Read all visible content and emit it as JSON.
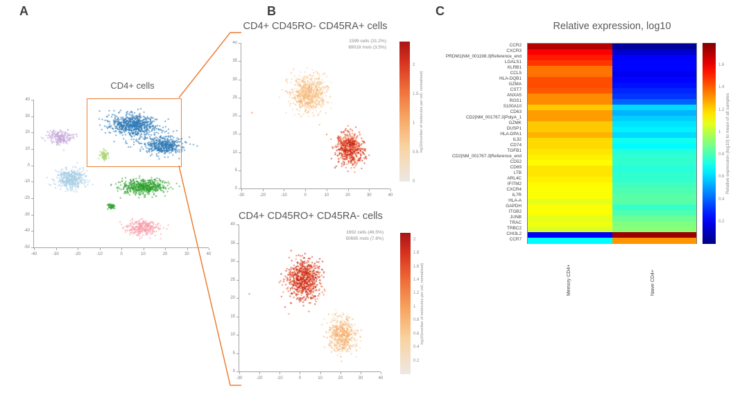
{
  "figure": {
    "panel_labels": {
      "a": "A",
      "b": "B",
      "c": "C"
    },
    "accent_color": "#ED7D31",
    "axis_color": "#a3a3a3"
  },
  "chart_data": [
    {
      "id": "tsne_overview",
      "panel": "A",
      "type": "scatter",
      "title": "",
      "xlim": [
        -40,
        40
      ],
      "ylim": [
        -50,
        40
      ],
      "x_ticks": [
        -40,
        -30,
        -20,
        -10,
        0,
        10,
        20,
        30,
        40
      ],
      "y_ticks": [
        -50,
        -40,
        -30,
        -20,
        -10,
        0,
        10,
        20,
        30,
        40
      ],
      "highlight_box": {
        "label": "CD4+ cells",
        "x_range": [
          -16,
          27
        ],
        "y_range": [
          0,
          41
        ],
        "color": "#ED7D31"
      },
      "clusters": [
        {
          "name": "CD4+ cells (selected)",
          "color": "#2E79B5",
          "blobs": [
            [
              5,
              25,
              10.5,
              6,
              620
            ],
            [
              20,
              12,
              8.5,
              5,
              420
            ],
            [
              11,
              19,
              12,
              8,
              120
            ]
          ]
        },
        {
          "name": "cluster-lavender",
          "color": "#C5A5D8",
          "blobs": [
            [
              -28,
              17,
              5.5,
              4.5,
              200
            ]
          ]
        },
        {
          "name": "cluster-light-blue",
          "color": "#A9CEE5",
          "blobs": [
            [
              -23,
              -8,
              6.5,
              6,
              430
            ]
          ]
        },
        {
          "name": "cluster-light-green",
          "color": "#A7D46B",
          "blobs": [
            [
              -8,
              6,
              2,
              3,
              70
            ]
          ]
        },
        {
          "name": "cluster-green",
          "color": "#2DA02D",
          "blobs": [
            [
              10,
              -13,
              10.5,
              4.5,
              520
            ],
            [
              -5,
              -25,
              2,
              2,
              45
            ]
          ]
        },
        {
          "name": "cluster-pink",
          "color": "#F79DA9",
          "blobs": [
            [
              10,
              -38,
              7.5,
              4.5,
              300
            ]
          ]
        }
      ]
    },
    {
      "id": "tsne_cd45ra",
      "panel": "B",
      "type": "scatter",
      "title": "CD4+ CD45RO- CD45RA+ cells",
      "annotation": [
        "1599 cells (31.2%)",
        "69018 mols (3.5%)"
      ],
      "xlim": [
        -30,
        40
      ],
      "ylim": [
        0,
        40
      ],
      "x_ticks": [
        -30,
        -20,
        -10,
        0,
        10,
        20,
        30,
        40
      ],
      "y_ticks": [
        0,
        5,
        10,
        15,
        20,
        25,
        30,
        35,
        40
      ],
      "colorbar": {
        "label": "log10(number of molecules per cell, normalized)",
        "ticks": [
          0,
          0.5,
          1,
          1.5,
          2
        ],
        "vmin": 0,
        "vmax": 2.4
      },
      "lobes": [
        [
          2,
          26,
          8,
          5,
          720,
          0.15,
          1.05
        ],
        [
          21,
          11,
          6.5,
          4.5,
          560,
          1.35,
          2.3
        ],
        [
          -25,
          21,
          0.2,
          0.2,
          1,
          1.5,
          1.5
        ]
      ]
    },
    {
      "id": "tsne_cd45ro",
      "panel": "B",
      "type": "scatter",
      "title": "CD4+ CD45RO+ CD45RA- cells",
      "annotation": [
        "1692 cells (46.5%)",
        "50695 mols (7.6%)"
      ],
      "xlim": [
        -30,
        40
      ],
      "ylim": [
        0,
        40
      ],
      "x_ticks": [
        -30,
        -20,
        -10,
        0,
        10,
        20,
        30,
        40
      ],
      "y_ticks": [
        0,
        5,
        10,
        15,
        20,
        25,
        30,
        35,
        40
      ],
      "colorbar": {
        "label": "log10(number of molecules per cell, normalized)",
        "ticks": [
          0.2,
          0.4,
          0.6,
          0.8,
          1,
          1.2,
          1.4,
          1.6,
          1.8,
          2
        ],
        "vmin": 0,
        "vmax": 2.1
      },
      "lobes": [
        [
          2,
          25,
          8,
          5.5,
          720,
          1.25,
          2.05
        ],
        [
          21,
          10,
          6.5,
          4.5,
          560,
          0.2,
          1.0
        ],
        [
          -25,
          21,
          0.2,
          0.2,
          1,
          1.5,
          1.5
        ]
      ]
    },
    {
      "id": "expression_heatmap",
      "panel": "C",
      "type": "heatmap",
      "title": "Relative expression, log10",
      "columns": [
        "Memory CD4+",
        "Naive CD4+"
      ],
      "rows": [
        "CCR2",
        "CXCR3",
        "PRDM1|NM_001198.3|Reference_end",
        "LGALS1",
        "KLRB1",
        "CCL5",
        "HLA-DQB1",
        "GZMA",
        "CST7",
        "ANXA5",
        "RGS1",
        "S100A10",
        "CD63",
        "CD2|NM_001767.3|PolyA_1",
        "GZMK",
        "DUSP1",
        "HLA-DPA1",
        "IL32",
        "CD74",
        "TGFB1",
        "CD2|NM_001767.3|Reference_end",
        "CD52",
        "CD69",
        "LTB",
        "ARL4C",
        "IFITM2",
        "CXCR4",
        "IL7R",
        "HLA-A",
        "GAPDH",
        "ITGB2",
        "JUNB",
        "TRAC",
        "TRBC2",
        "CHI3L2",
        "CCR7"
      ],
      "values": [
        [
          1.71,
          0.05
        ],
        [
          1.58,
          0.14
        ],
        [
          1.53,
          0.22
        ],
        [
          1.48,
          0.23
        ],
        [
          1.37,
          0.23
        ],
        [
          1.37,
          0.2
        ],
        [
          1.44,
          0.23
        ],
        [
          1.44,
          0.25
        ],
        [
          1.42,
          0.29
        ],
        [
          1.33,
          0.32
        ],
        [
          1.33,
          0.4
        ],
        [
          1.22,
          0.61
        ],
        [
          1.3,
          0.54
        ],
        [
          1.3,
          0.59
        ],
        [
          1.22,
          0.63
        ],
        [
          1.22,
          0.65
        ],
        [
          1.26,
          0.61
        ],
        [
          1.19,
          0.7
        ],
        [
          1.19,
          0.67
        ],
        [
          1.17,
          0.74
        ],
        [
          1.15,
          0.76
        ],
        [
          1.13,
          0.76
        ],
        [
          1.17,
          0.74
        ],
        [
          1.17,
          0.76
        ],
        [
          1.15,
          0.76
        ],
        [
          1.13,
          0.79
        ],
        [
          1.12,
          0.81
        ],
        [
          1.12,
          0.83
        ],
        [
          1.08,
          0.83
        ],
        [
          1.12,
          0.77
        ],
        [
          1.12,
          0.81
        ],
        [
          1.08,
          0.86
        ],
        [
          1.1,
          0.9
        ],
        [
          1.06,
          0.92
        ],
        [
          0.22,
          1.75
        ],
        [
          0.67,
          1.31
        ]
      ],
      "colorbar": {
        "label": "Relative expression (log10) to mean of all samples",
        "ticks": [
          0.2,
          0.4,
          0.6,
          0.8,
          1,
          1.2,
          1.4,
          1.6
        ],
        "vmin": 0,
        "vmax": 1.8
      }
    }
  ]
}
